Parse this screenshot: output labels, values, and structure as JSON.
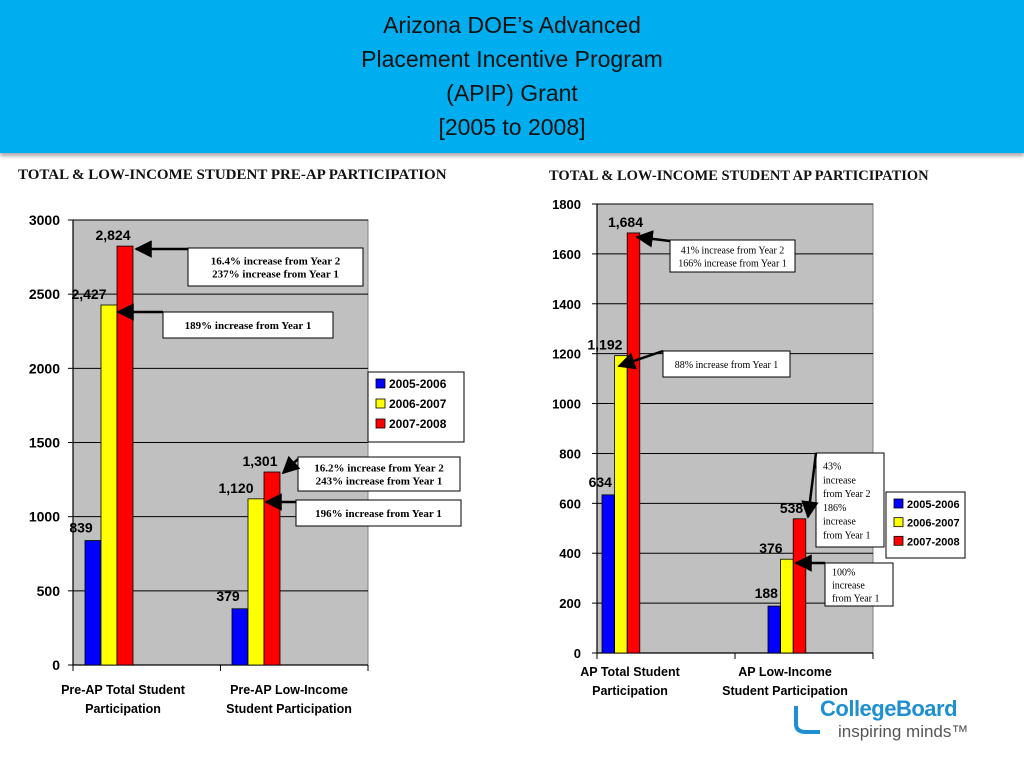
{
  "slide": {
    "title_lines": [
      "Arizona DOE’s Advanced",
      "Placement Incentive Program",
      "(APIP) Grant",
      "[2005 to 2008]"
    ]
  },
  "logo": {
    "name": "CollegeBoard",
    "tagline": "inspiring minds™"
  },
  "colors": {
    "header_bg": "#00aeef",
    "plot_bg": "#c0c0c0",
    "series_2005": "#0000ff",
    "series_2006": "#ffff00",
    "series_2007": "#ff0000"
  },
  "chart_data": [
    {
      "type": "bar",
      "title": "TOTAL & LOW-INCOME STUDENT PRE-AP PARTICIPATION",
      "categories": [
        "Pre-AP Total Student Participation",
        "Pre-AP Low-Income Student Participation"
      ],
      "category_lines": [
        [
          "Pre-AP Total Student",
          "Participation"
        ],
        [
          "Pre-AP Low-Income",
          "Student Participation"
        ]
      ],
      "series": [
        {
          "name": "2005-2006",
          "values": [
            839,
            379
          ]
        },
        {
          "name": "2006-2007",
          "values": [
            2427,
            1120
          ]
        },
        {
          "name": "2007-2008",
          "values": [
            2824,
            1301
          ]
        }
      ],
      "value_labels": [
        [
          "839",
          "2,427",
          "2,824"
        ],
        [
          "379",
          "1,120",
          "1,301"
        ]
      ],
      "ylim": [
        0,
        3000
      ],
      "yticks": [
        0,
        500,
        1000,
        1500,
        2000,
        2500,
        3000
      ],
      "grid": true,
      "legend": "right",
      "annotations": [
        {
          "lines": [
            "16.4% increase from Year 2",
            "237% increase from Year 1"
          ]
        },
        {
          "lines": [
            "189% increase from Year 1"
          ]
        },
        {
          "lines": [
            "16.2% increase from Year 2",
            "243% increase from Year 1"
          ]
        },
        {
          "lines": [
            "196% increase from Year 1"
          ]
        }
      ]
    },
    {
      "type": "bar",
      "title": "TOTAL & LOW-INCOME STUDENT AP PARTICIPATION",
      "categories": [
        "AP Total Student Participation",
        "AP Low-Income Student Participation"
      ],
      "category_lines": [
        [
          "AP Total Student",
          "Participation"
        ],
        [
          "AP Low-Income",
          "Student Participation"
        ]
      ],
      "series": [
        {
          "name": "2005-2006",
          "values": [
            634,
            188
          ]
        },
        {
          "name": "2006-2007",
          "values": [
            1192,
            376
          ]
        },
        {
          "name": "2007-2008",
          "values": [
            1684,
            538
          ]
        }
      ],
      "value_labels": [
        [
          "634",
          "1,192",
          "1,684"
        ],
        [
          "188",
          "376",
          "538"
        ]
      ],
      "ylim": [
        0,
        1800
      ],
      "yticks": [
        0,
        200,
        400,
        600,
        800,
        1000,
        1200,
        1400,
        1600,
        1800
      ],
      "grid": true,
      "legend": "right",
      "annotations": [
        {
          "lines": [
            "41% increase from Year 2",
            "166% increase from Year 1"
          ]
        },
        {
          "lines": [
            "88% increase from Year 1"
          ]
        },
        {
          "lines": [
            "43%",
            "increase",
            "from Year 2",
            "186%",
            "increase",
            "from Year 1"
          ]
        },
        {
          "lines": [
            "100%",
            "increase",
            "from Year 1"
          ]
        }
      ]
    }
  ]
}
